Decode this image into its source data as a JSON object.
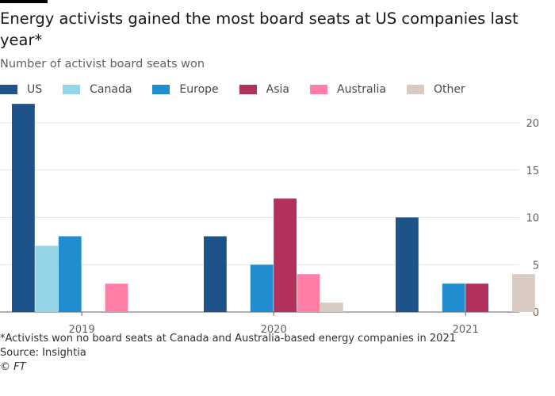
{
  "title": "Energy activists gained the most board seats at US companies last year*",
  "subtitle": "Number of activist board seats won",
  "footnote": "*Activists won no board seats at Canada and Australia-based energy companies in 2021",
  "source": "Source: Insightia",
  "credit": "© FT",
  "chart_data": {
    "type": "bar",
    "categories": [
      "2019",
      "2020",
      "2021"
    ],
    "series": [
      {
        "name": "US",
        "color": "#1d5389",
        "values": [
          22,
          8,
          10
        ]
      },
      {
        "name": "Canada",
        "color": "#96d4e8",
        "values": [
          7,
          0,
          0
        ]
      },
      {
        "name": "Europe",
        "color": "#1f8dd0",
        "values": [
          8,
          5,
          3
        ]
      },
      {
        "name": "Asia",
        "color": "#b1305c",
        "values": [
          0,
          12,
          3
        ]
      },
      {
        "name": "Australia",
        "color": "#ff7fa6",
        "values": [
          3,
          4,
          0
        ]
      },
      {
        "name": "Other",
        "color": "#d9cbc1",
        "values": [
          0,
          1,
          4
        ]
      }
    ],
    "yticks": [
      0,
      5,
      10,
      15,
      20
    ],
    "ylim": [
      0,
      22
    ],
    "yaxis_position": "right",
    "grid": true,
    "legend": "top"
  }
}
